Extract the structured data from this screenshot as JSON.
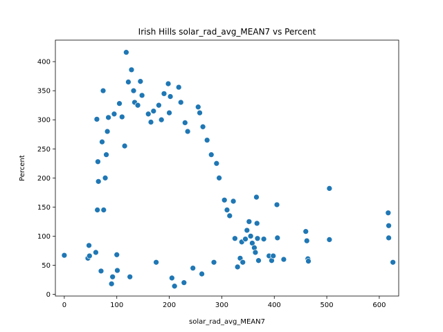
{
  "chart_data": {
    "type": "scatter",
    "title": "Irish Hills solar_rad_avg_MEAN7 vs Percent",
    "xlabel": "solar_rad_avg_MEAN7",
    "ylabel": "Percent",
    "xlim": [
      -17,
      637
    ],
    "ylim": [
      -3,
      437
    ],
    "xticks": [
      "0",
      "100",
      "200",
      "300",
      "400",
      "500",
      "600"
    ],
    "xtick_values": [
      0,
      100,
      200,
      300,
      400,
      500,
      600
    ],
    "yticks": [
      "0",
      "50",
      "100",
      "150",
      "200",
      "250",
      "300",
      "350",
      "400"
    ],
    "ytick_values": [
      0,
      50,
      100,
      150,
      200,
      250,
      300,
      350,
      400
    ],
    "grid": false,
    "marker_color": "#1f77b4",
    "marker_edge_color": "#ffffff",
    "points": [
      [
        0,
        67
      ],
      [
        45,
        62
      ],
      [
        47,
        84
      ],
      [
        48,
        66
      ],
      [
        60,
        72
      ],
      [
        62,
        301
      ],
      [
        63,
        145
      ],
      [
        64,
        228
      ],
      [
        65,
        194
      ],
      [
        70,
        40
      ],
      [
        72,
        262
      ],
      [
        74,
        350
      ],
      [
        75,
        145
      ],
      [
        78,
        200
      ],
      [
        80,
        240
      ],
      [
        82,
        280
      ],
      [
        84,
        304
      ],
      [
        90,
        18
      ],
      [
        92,
        30
      ],
      [
        95,
        310
      ],
      [
        100,
        68
      ],
      [
        101,
        41
      ],
      [
        105,
        328
      ],
      [
        110,
        305
      ],
      [
        115,
        255
      ],
      [
        118,
        416
      ],
      [
        122,
        365
      ],
      [
        125,
        30
      ],
      [
        128,
        386
      ],
      [
        132,
        350
      ],
      [
        134,
        330
      ],
      [
        140,
        325
      ],
      [
        145,
        366
      ],
      [
        148,
        342
      ],
      [
        160,
        310
      ],
      [
        165,
        296
      ],
      [
        170,
        315
      ],
      [
        175,
        55
      ],
      [
        180,
        325
      ],
      [
        185,
        300
      ],
      [
        190,
        345
      ],
      [
        198,
        362
      ],
      [
        200,
        312
      ],
      [
        202,
        340
      ],
      [
        205,
        28
      ],
      [
        210,
        14
      ],
      [
        218,
        356
      ],
      [
        222,
        330
      ],
      [
        228,
        20
      ],
      [
        230,
        295
      ],
      [
        235,
        280
      ],
      [
        245,
        45
      ],
      [
        255,
        322
      ],
      [
        258,
        312
      ],
      [
        262,
        35
      ],
      [
        264,
        288
      ],
      [
        272,
        265
      ],
      [
        280,
        240
      ],
      [
        285,
        55
      ],
      [
        290,
        225
      ],
      [
        295,
        200
      ],
      [
        305,
        162
      ],
      [
        310,
        145
      ],
      [
        315,
        135
      ],
      [
        322,
        160
      ],
      [
        325,
        96
      ],
      [
        330,
        47
      ],
      [
        335,
        62
      ],
      [
        338,
        90
      ],
      [
        340,
        55
      ],
      [
        345,
        95
      ],
      [
        348,
        110
      ],
      [
        352,
        125
      ],
      [
        355,
        100
      ],
      [
        358,
        88
      ],
      [
        362,
        80
      ],
      [
        364,
        72
      ],
      [
        366,
        167
      ],
      [
        367,
        122
      ],
      [
        368,
        96
      ],
      [
        370,
        58
      ],
      [
        380,
        95
      ],
      [
        390,
        66
      ],
      [
        395,
        58
      ],
      [
        398,
        66
      ],
      [
        405,
        154
      ],
      [
        406,
        97
      ],
      [
        418,
        60
      ],
      [
        460,
        108
      ],
      [
        462,
        92
      ],
      [
        464,
        61
      ],
      [
        465,
        57
      ],
      [
        505,
        182
      ],
      [
        505,
        94
      ],
      [
        617,
        140
      ],
      [
        618,
        118
      ],
      [
        618,
        97
      ],
      [
        626,
        55
      ]
    ]
  }
}
